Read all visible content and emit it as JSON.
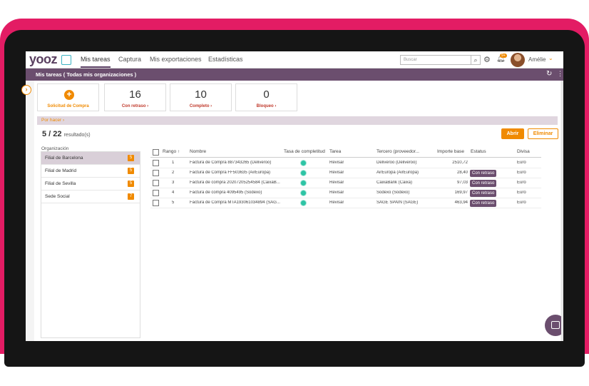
{
  "brand": {
    "logo": "yooz"
  },
  "nav": {
    "tabs": [
      {
        "label": "Mis tareas",
        "active": true
      },
      {
        "label": "Captura"
      },
      {
        "label": "Mis exportaciones"
      },
      {
        "label": "Estadísticas"
      }
    ],
    "search_placeholder": "Buscar",
    "notification_count": "9+",
    "user_name": "Amélie"
  },
  "header": {
    "title": "Mis tareas ( Todas mis organizaciones )"
  },
  "cards": [
    {
      "value": "",
      "label": "Solicitud de Compra"
    },
    {
      "value": "16",
      "label": "Con retraso ›"
    },
    {
      "value": "10",
      "label": "Completo ›"
    },
    {
      "value": "0",
      "label": "Bloqueo ›"
    }
  ],
  "section": {
    "label": "Por hacer ›"
  },
  "results": {
    "count": "5 / 22",
    "suffix": "resultado(s)"
  },
  "actions": {
    "open": "Abrir",
    "delete": "Eliminar"
  },
  "organizations": {
    "label": "Organización",
    "items": [
      {
        "name": "Filial de Barcelona",
        "count": "5",
        "active": true
      },
      {
        "name": "Filial de Madrid",
        "count": "5"
      },
      {
        "name": "Filial de Sevilla",
        "count": "5"
      },
      {
        "name": "Sede Social",
        "count": "7"
      }
    ]
  },
  "table": {
    "columns": [
      "Rango",
      "Nombre",
      "Tasa de completitud",
      "Tarea",
      "Tercero (proveedor...",
      "Importe base",
      "Estatus",
      "Divisa"
    ],
    "rows": [
      {
        "rank": "1",
        "name": "Factura de Compra 887343265 (Deliveroo)",
        "task": "Revisar",
        "third": "Deliveroo (Deliveroo)",
        "amount": "2510,72",
        "status": "",
        "currency": "Euro"
      },
      {
        "rank": "2",
        "name": "Factura de Compra FF503635 (AirEuropa)",
        "task": "Revisar",
        "third": "AirEuropa (AirEuropa)",
        "amount": "28,40",
        "status": "Con retraso",
        "currency": "Euro"
      },
      {
        "rank": "3",
        "name": "Factura de compra 20207205254584 (CaixaB...",
        "task": "Revisar",
        "third": "CaixaBank (Caixa)",
        "amount": "97,03",
        "status": "Con retraso",
        "currency": "Euro"
      },
      {
        "rank": "4",
        "name": "Factura de compra 4095495 (Sodexo)",
        "task": "Revisar",
        "third": "Sodexo (Sodexo)",
        "amount": "169,97",
        "status": "Con retraso",
        "currency": "Euro"
      },
      {
        "rank": "5",
        "name": "Factura de Compra MTA193061034894 (SAG...",
        "task": "Revisar",
        "third": "SAGE SPAIN (SAGE)",
        "amount": "463,94",
        "status": "Con retraso",
        "currency": "Euro"
      }
    ]
  },
  "colors": {
    "accent": "#f08a00",
    "header": "#6b4e6e",
    "frame": "#e31c64",
    "progress": "#2ec4a5"
  }
}
